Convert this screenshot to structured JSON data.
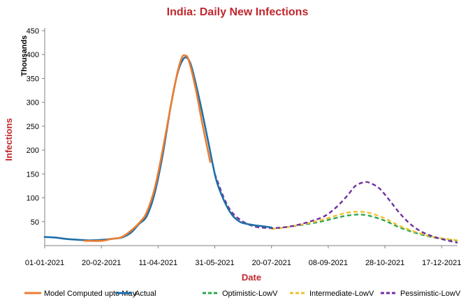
{
  "chart_data": {
    "type": "line",
    "title": "India: Daily New Infections",
    "ylabel": "Infections",
    "yunits": "Thousands",
    "xlabel": "Date",
    "x_ticks": [
      "01-01-2021",
      "20-02-2021",
      "11-04-2021",
      "31-05-2021",
      "20-07-2021",
      "08-09-2021",
      "28-10-2021",
      "17-12-2021"
    ],
    "y_ticks": [
      50,
      100,
      150,
      200,
      250,
      300,
      350,
      400,
      450
    ],
    "xlim": [
      "2021-01-01",
      "2021-12-31"
    ],
    "ylim": [
      0,
      450
    ],
    "grid": false,
    "legend": "bottom",
    "series": [
      {
        "name": "Model Computed upto May",
        "color": "#ed7d31",
        "dash": "solid",
        "points": [
          [
            "2021-02-05",
            10
          ],
          [
            "2021-02-20",
            10
          ],
          [
            "2021-03-01",
            14
          ],
          [
            "2021-03-10",
            18
          ],
          [
            "2021-03-20",
            35
          ],
          [
            "2021-03-27",
            52
          ],
          [
            "2021-04-01",
            70
          ],
          [
            "2021-04-08",
            120
          ],
          [
            "2021-04-15",
            200
          ],
          [
            "2021-04-22",
            290
          ],
          [
            "2021-04-28",
            362
          ],
          [
            "2021-05-02",
            394
          ],
          [
            "2021-05-05",
            398
          ],
          [
            "2021-05-08",
            388
          ],
          [
            "2021-05-14",
            330
          ],
          [
            "2021-05-20",
            255
          ],
          [
            "2021-05-27",
            175
          ]
        ]
      },
      {
        "name": "Actual",
        "color": "#1f6fa8",
        "dash": "solid",
        "points": [
          [
            "2021-01-01",
            18
          ],
          [
            "2021-01-10",
            17
          ],
          [
            "2021-01-20",
            14
          ],
          [
            "2021-02-01",
            12
          ],
          [
            "2021-02-10",
            11
          ],
          [
            "2021-02-20",
            12
          ],
          [
            "2021-03-01",
            14
          ],
          [
            "2021-03-10",
            17
          ],
          [
            "2021-03-18",
            27
          ],
          [
            "2021-03-25",
            45
          ],
          [
            "2021-04-01",
            62
          ],
          [
            "2021-04-08",
            110
          ],
          [
            "2021-04-15",
            190
          ],
          [
            "2021-04-22",
            290
          ],
          [
            "2021-04-28",
            360
          ],
          [
            "2021-05-03",
            390
          ],
          [
            "2021-05-07",
            392
          ],
          [
            "2021-05-11",
            370
          ],
          [
            "2021-05-18",
            300
          ],
          [
            "2021-05-25",
            220
          ],
          [
            "2021-06-01",
            140
          ],
          [
            "2021-06-08",
            95
          ],
          [
            "2021-06-15",
            65
          ],
          [
            "2021-06-22",
            50
          ],
          [
            "2021-06-29",
            45
          ],
          [
            "2021-07-07",
            42
          ],
          [
            "2021-07-14",
            40
          ],
          [
            "2021-07-20",
            38
          ]
        ]
      },
      {
        "name": "Optimistic-LowV",
        "color": "#2ba84a",
        "dash": "dashed",
        "points": [
          [
            "2021-07-20",
            35
          ],
          [
            "2021-08-01",
            38
          ],
          [
            "2021-08-15",
            43
          ],
          [
            "2021-09-01",
            50
          ],
          [
            "2021-09-15",
            58
          ],
          [
            "2021-09-25",
            63
          ],
          [
            "2021-10-05",
            65
          ],
          [
            "2021-10-15",
            62
          ],
          [
            "2021-10-28",
            52
          ],
          [
            "2021-11-10",
            38
          ],
          [
            "2021-11-25",
            26
          ],
          [
            "2021-12-10",
            17
          ],
          [
            "2021-12-31",
            10
          ]
        ]
      },
      {
        "name": "Intermediate-LowV",
        "color": "#f2c12e",
        "dash": "dashed",
        "points": [
          [
            "2021-07-20",
            35
          ],
          [
            "2021-08-01",
            38
          ],
          [
            "2021-08-15",
            44
          ],
          [
            "2021-09-01",
            53
          ],
          [
            "2021-09-15",
            63
          ],
          [
            "2021-09-25",
            69
          ],
          [
            "2021-10-05",
            71
          ],
          [
            "2021-10-15",
            68
          ],
          [
            "2021-10-28",
            57
          ],
          [
            "2021-11-10",
            41
          ],
          [
            "2021-11-25",
            28
          ],
          [
            "2021-12-10",
            18
          ],
          [
            "2021-12-31",
            11
          ]
        ]
      },
      {
        "name": "Pessimistic-LowV",
        "color": "#7030a0",
        "dash": "dashed",
        "points": [
          [
            "2021-05-31",
            150
          ],
          [
            "2021-06-08",
            100
          ],
          [
            "2021-06-15",
            70
          ],
          [
            "2021-06-25",
            50
          ],
          [
            "2021-07-05",
            40
          ],
          [
            "2021-07-15",
            37
          ],
          [
            "2021-07-25",
            37
          ],
          [
            "2021-08-05",
            40
          ],
          [
            "2021-08-15",
            45
          ],
          [
            "2021-08-25",
            52
          ],
          [
            "2021-09-05",
            62
          ],
          [
            "2021-09-15",
            80
          ],
          [
            "2021-09-25",
            105
          ],
          [
            "2021-10-02",
            125
          ],
          [
            "2021-10-10",
            133
          ],
          [
            "2021-10-15",
            131
          ],
          [
            "2021-10-23",
            120
          ],
          [
            "2021-11-01",
            95
          ],
          [
            "2021-11-10",
            68
          ],
          [
            "2021-11-20",
            44
          ],
          [
            "2021-12-01",
            27
          ],
          [
            "2021-12-15",
            15
          ],
          [
            "2021-12-31",
            6
          ]
        ]
      }
    ]
  }
}
